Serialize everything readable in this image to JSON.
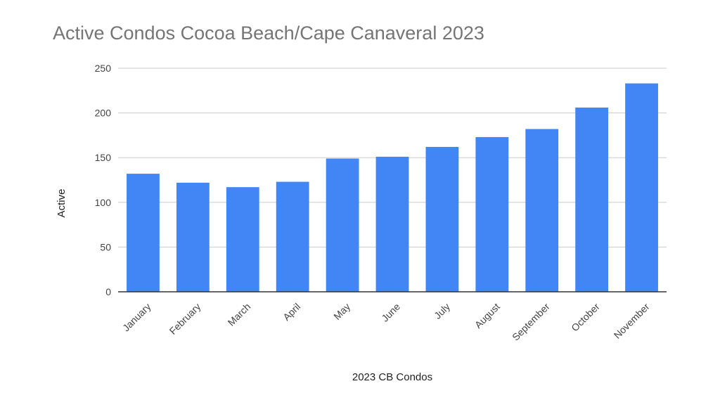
{
  "chart_data": {
    "type": "bar",
    "title": "Active Condos Cocoa Beach/Cape Canaveral 2023",
    "xlabel": "2023 CB Condos",
    "ylabel": "Active",
    "categories": [
      "January",
      "February",
      "March",
      "April",
      "May",
      "June",
      "July",
      "August",
      "September",
      "October",
      "November"
    ],
    "series": [
      {
        "values": [
          132,
          122,
          117,
          123,
          149,
          151,
          162,
          173,
          182,
          206,
          233
        ]
      }
    ],
    "ylim": [
      0,
      250
    ],
    "yticks": [
      "0",
      "50",
      "100",
      "150",
      "200",
      "250"
    ],
    "grid": true,
    "legend": "none",
    "bar_color": "#4285f4",
    "gridline_color": "#cccccc",
    "axis_color": "#333333",
    "title_color": "#757575"
  }
}
